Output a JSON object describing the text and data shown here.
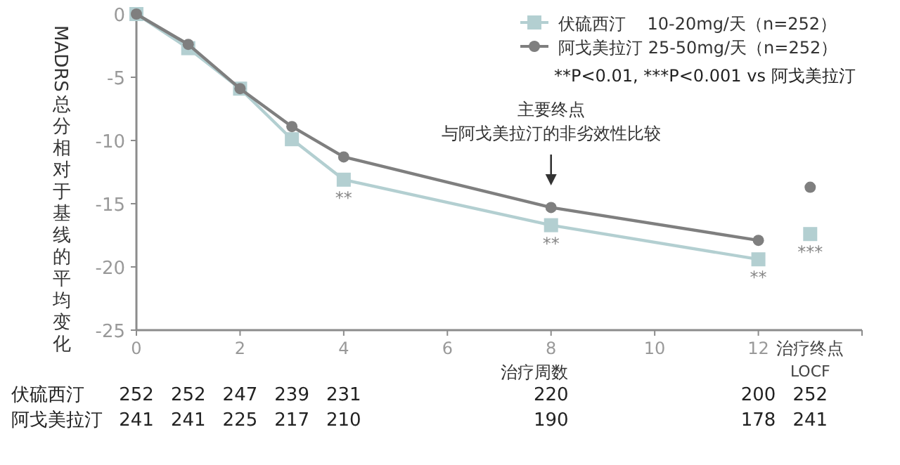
{
  "chart_data": {
    "type": "line",
    "ylabel": "MADRS总分相对于基线的平均变化",
    "xlabel": "治疗周数",
    "xlim": [
      0,
      14
    ],
    "xticks": [
      0,
      2,
      4,
      6,
      8,
      10,
      12,
      {
        "value": 13,
        "label": "治疗终点 LOCF"
      },
      {
        "value": 14,
        "label": null
      }
    ],
    "ylim": [
      -25,
      0
    ],
    "yticks": [
      -25,
      -20,
      -15,
      -10,
      -5,
      0
    ],
    "legend": "top right",
    "grid": false,
    "series": [
      {
        "name": "伏硫西汀    10-20mg/天（n=252）",
        "color": "#b3cfd1",
        "marker": "square",
        "x": [
          0,
          1,
          2,
          3,
          4,
          8,
          12
        ],
        "values": [
          0,
          -2.7,
          -5.9,
          -9.9,
          -13.1,
          -16.7,
          -19.4
        ]
      },
      {
        "name": "阿戈美拉汀 25-50mg/天（n=252）",
        "color": "#7f7f7f",
        "marker": "circle",
        "x": [
          0,
          1,
          2,
          3,
          4,
          8,
          12
        ],
        "values": [
          0,
          -2.4,
          -5.9,
          -8.9,
          -11.3,
          -15.3,
          -17.9
        ]
      },
      {
        "type": "scatter",
        "color": "#b3cfd1",
        "marker": "square",
        "x": [
          13
        ],
        "values": [
          -17.4
        ]
      },
      {
        "type": "scatter",
        "color": "#7f7f7f",
        "marker": "circle",
        "x": [
          13
        ],
        "values": [
          -13.7
        ]
      }
    ],
    "annotations": [
      "**P<0.01, ***P<0.001 vs 阿戈美拉汀",
      "主要终点",
      "与阿戈美拉汀的非劣效性比较",
      {
        "text": "**",
        "x": 4,
        "y": -13.1
      },
      {
        "text": "**",
        "x": 8,
        "y": -16.7
      },
      {
        "text": "**",
        "x": 12,
        "y": -19.4
      },
      {
        "text": "***",
        "x": 13,
        "y": -17.4
      },
      "伏硫西汀",
      "252",
      "252",
      "247",
      "239",
      "231",
      "220",
      "200",
      "252",
      "阿戈美拉汀",
      "241",
      "241",
      "225",
      "217",
      "210",
      "190",
      "178",
      "241"
    ]
  }
}
